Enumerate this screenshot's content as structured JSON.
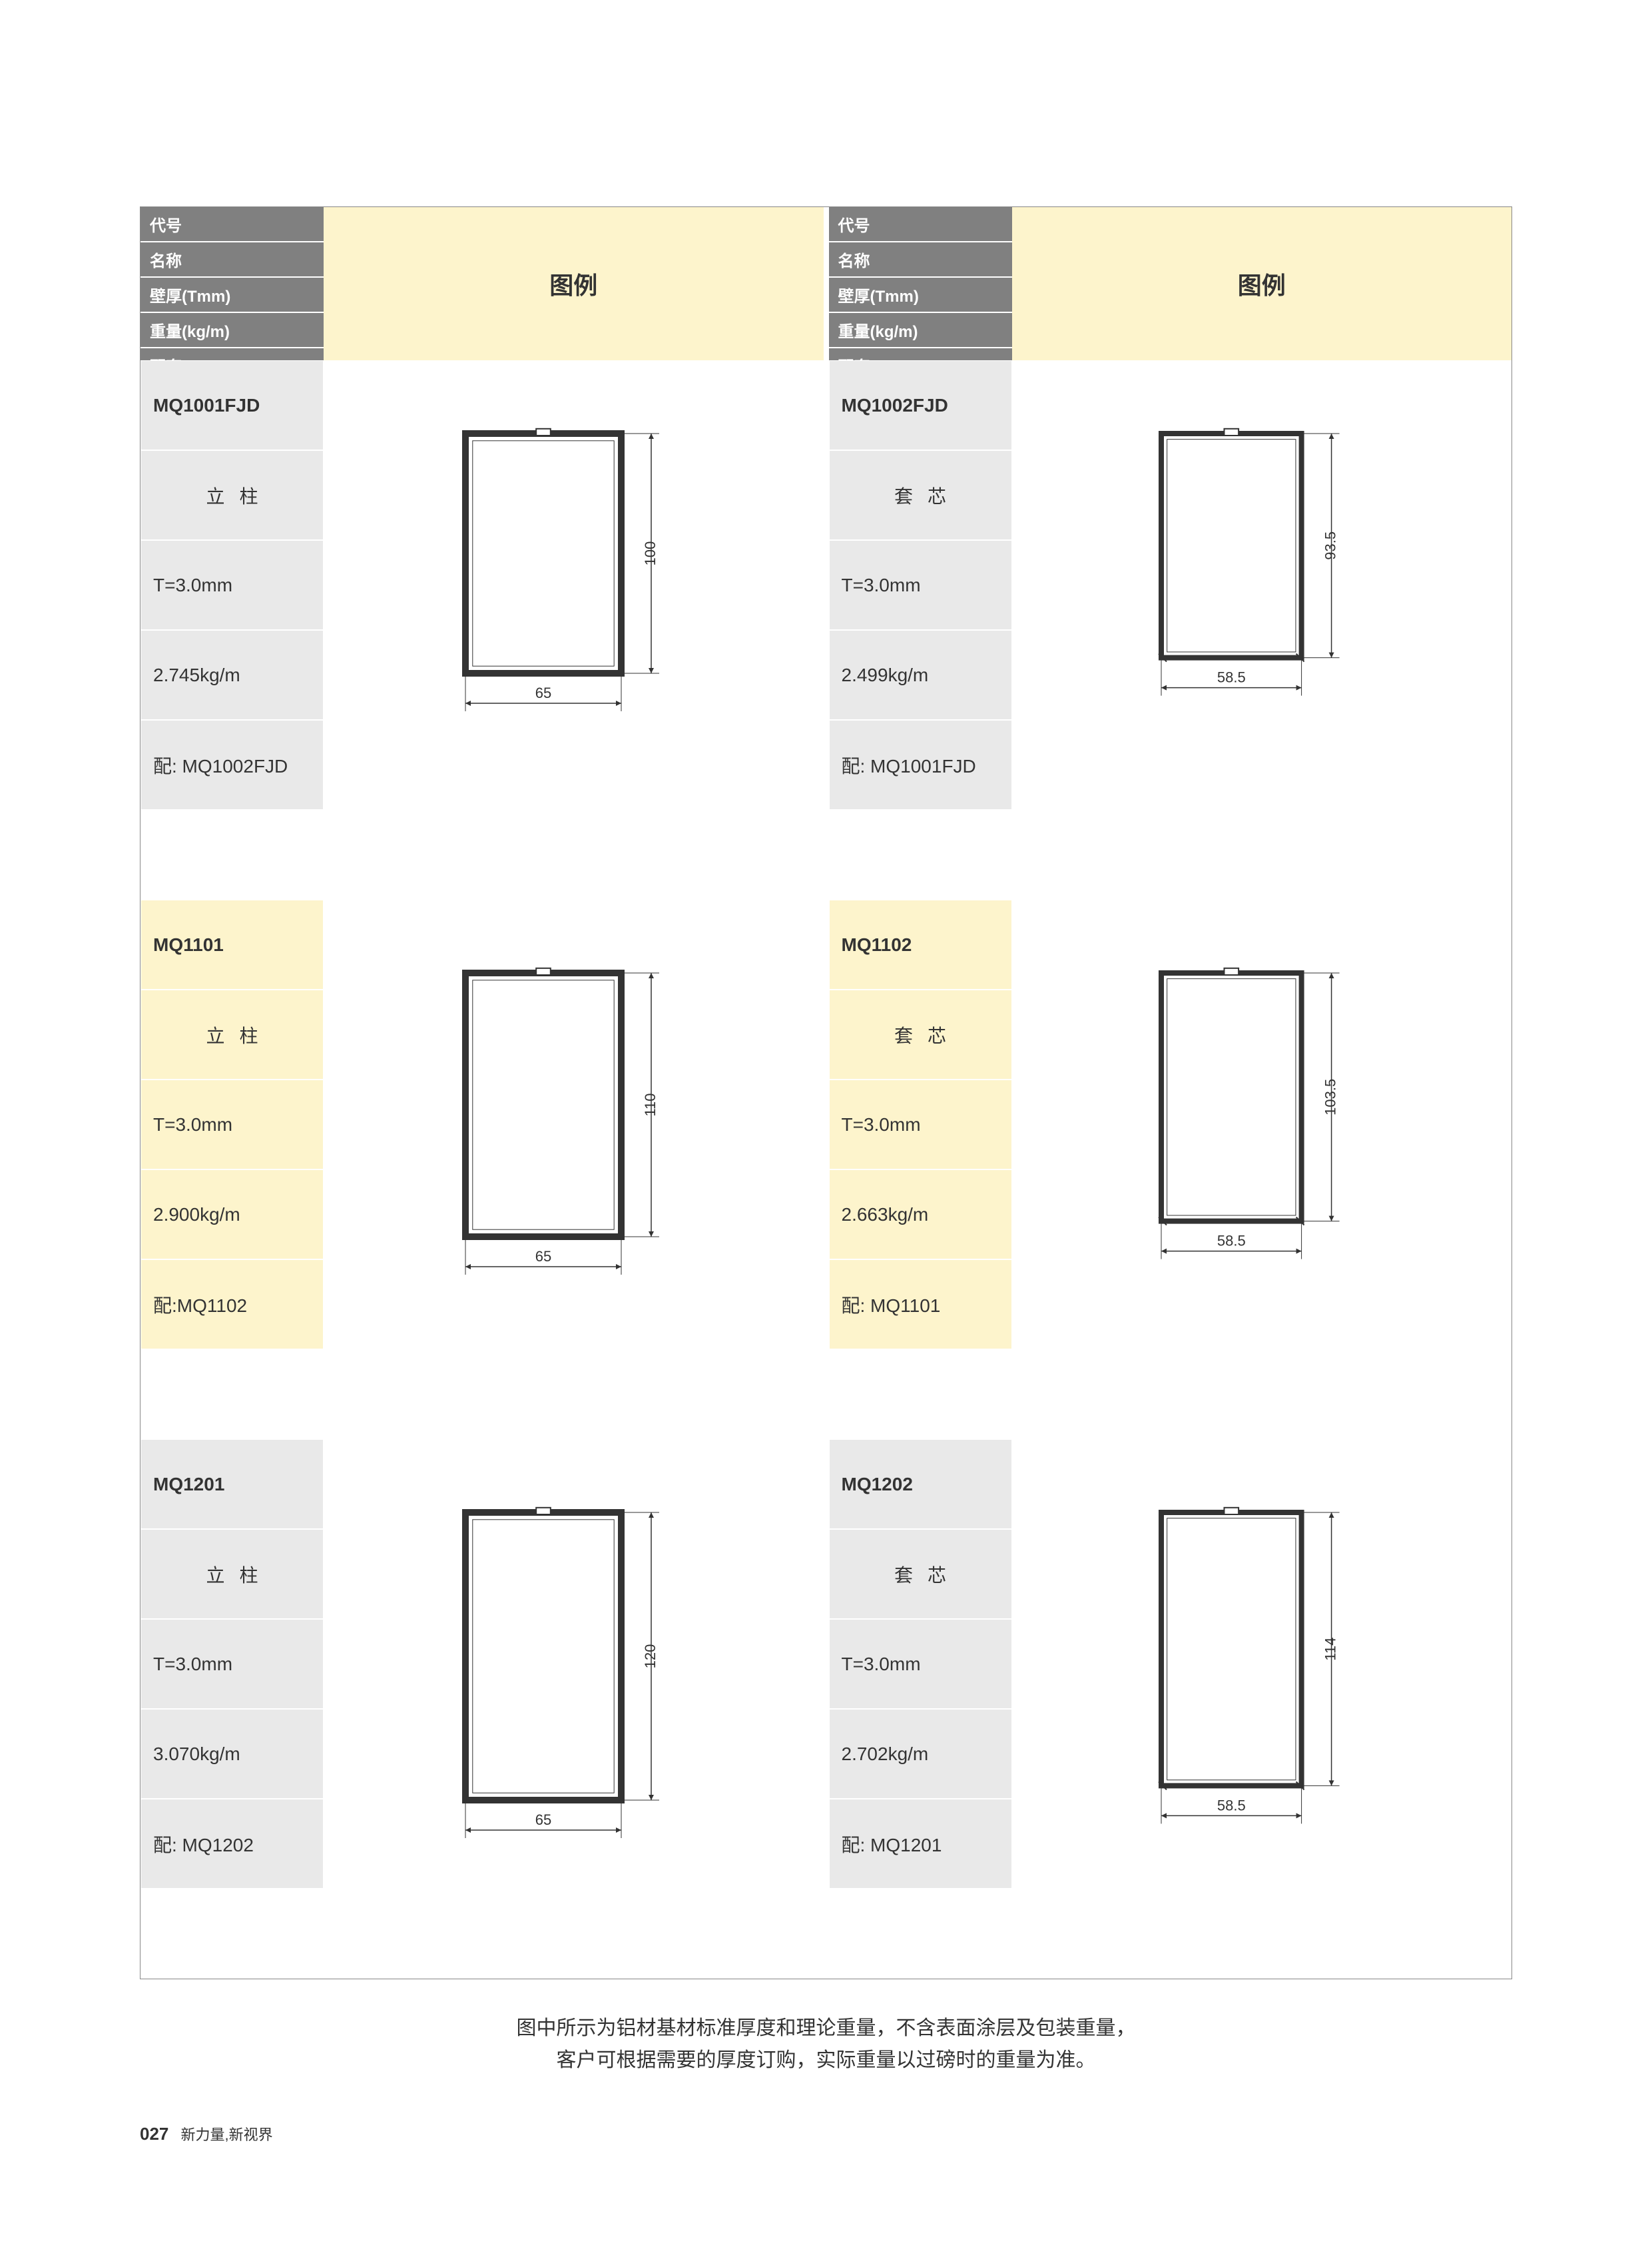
{
  "headers": {
    "code": "代号",
    "name": "名称",
    "thickness": "壁厚(Tmm)",
    "weight": "重量(kg/m)",
    "match": "配套",
    "legend": "图例"
  },
  "products": [
    {
      "column": 0,
      "bg": "gray",
      "code": "MQ1001FJD",
      "name": "立柱",
      "thickness": "T=3.0mm",
      "weight": "2.745kg/m",
      "match": "配: MQ1002FJD",
      "dim_w": "65",
      "dim_h": "100",
      "profile_type": "outer"
    },
    {
      "column": 1,
      "bg": "gray",
      "code": "MQ1002FJD",
      "name": "套芯",
      "thickness": "T=3.0mm",
      "weight": "2.499kg/m",
      "match": "配: MQ1001FJD",
      "dim_w": "58.5",
      "dim_h": "93.5",
      "profile_type": "inner"
    },
    {
      "column": 0,
      "bg": "yellow",
      "code": "MQ1101",
      "name": "立柱",
      "thickness": "T=3.0mm",
      "weight": "2.900kg/m",
      "match": "配:MQ1102",
      "dim_w": "65",
      "dim_h": "110",
      "profile_type": "outer"
    },
    {
      "column": 1,
      "bg": "yellow",
      "code": "MQ1102",
      "name": "套芯",
      "thickness": "T=3.0mm",
      "weight": "2.663kg/m",
      "match": "配: MQ1101",
      "dim_w": "58.5",
      "dim_h": "103.5",
      "profile_type": "inner"
    },
    {
      "column": 0,
      "bg": "gray",
      "code": "MQ1201",
      "name": "立柱",
      "thickness": "T=3.0mm",
      "weight": "3.070kg/m",
      "match": "配: MQ1202",
      "dim_w": "65",
      "dim_h": "120",
      "profile_type": "outer"
    },
    {
      "column": 1,
      "bg": "gray",
      "code": "MQ1202",
      "name": "套芯",
      "thickness": "T=3.0mm",
      "weight": "2.702kg/m",
      "match": "配: MQ1201",
      "dim_w": "58.5",
      "dim_h": "114",
      "profile_type": "inner"
    }
  ],
  "diagram_style": {
    "stroke": "#333333",
    "fill": "#ffffff",
    "hatch": "#555555",
    "dim_line": "#333333",
    "dim_text_size": 22,
    "profile_stroke_width": 2
  },
  "colors": {
    "header_bg": "#808080",
    "header_text": "#ffffff",
    "gray_cell": "#e9e9e9",
    "yellow_cell": "#fdf4cc",
    "page_bg": "#ffffff",
    "border": "#888888"
  },
  "footer": {
    "line1": "图中所示为铝材基材标准厚度和理论重量，不含表面涂层及包装重量，",
    "line2": "客户可根据需要的厚度订购，实际重量以过磅时的重量为准。"
  },
  "page": {
    "number": "027",
    "tagline": "新力量,新视界"
  }
}
